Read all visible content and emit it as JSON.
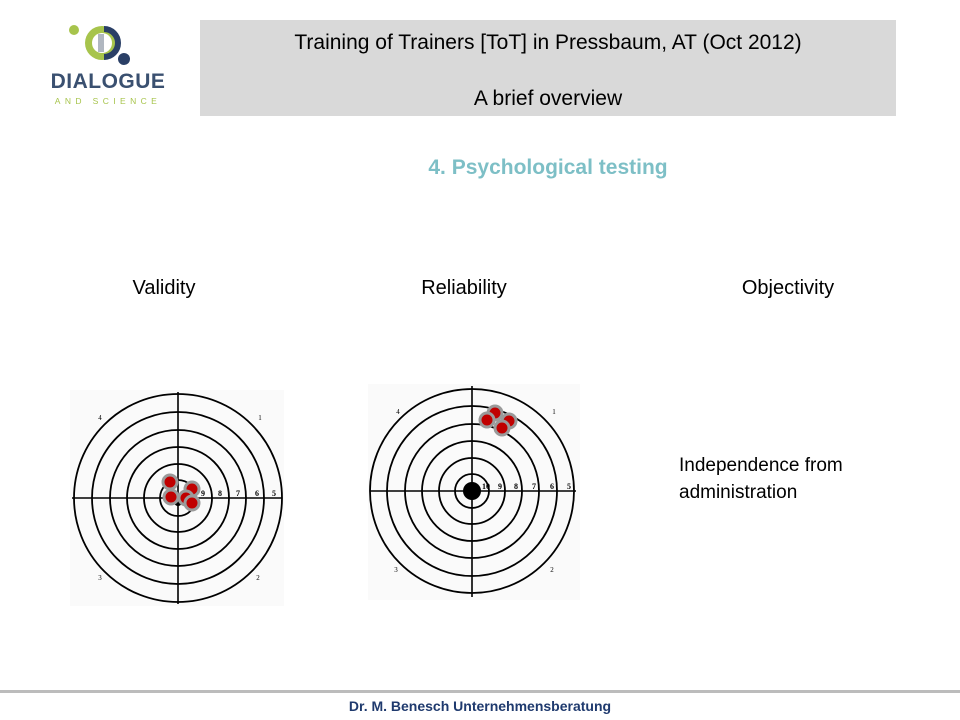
{
  "logo": {
    "title": "DIALOGUE",
    "subtitle": "AND SCIENCE",
    "colors": {
      "green": "#a7c44c",
      "navy": "#2a3f66",
      "gray": "#b0b7c0"
    }
  },
  "header": {
    "line1": "Training of Trainers [ToT] in Pressbaum, AT (Oct 2012)",
    "line2": "A brief overview"
  },
  "section_title": "4. Psychological testing",
  "columns": {
    "validity": "Validity",
    "reliability": "Reliability",
    "objectivity": "Objectivity"
  },
  "targets": {
    "ring_numbers": [
      "9",
      "8",
      "7",
      "6",
      "5"
    ],
    "center_number": "10",
    "quadrants": [
      "1",
      "2",
      "3",
      "4"
    ],
    "hit_color": "#c00000",
    "hit_outline": "#9a9a9a"
  },
  "objectivity_text": "Independence from administration",
  "footer": "Dr. M. Benesch Unternehmensberatung"
}
